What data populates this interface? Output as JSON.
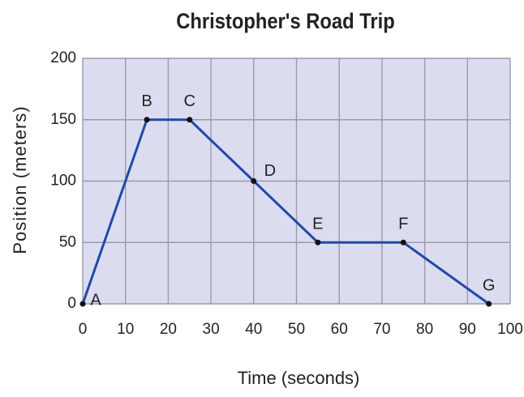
{
  "chart_data": {
    "type": "line",
    "title": "Christopher's Road Trip",
    "xlabel": "Time (seconds)",
    "ylabel": "Position (meters)",
    "x": [
      0,
      15,
      25,
      40,
      55,
      75,
      95
    ],
    "values": [
      0,
      150,
      150,
      100,
      50,
      50,
      0
    ],
    "point_labels": [
      "A",
      "B",
      "C",
      "D",
      "E",
      "F",
      "G"
    ],
    "color": "#1f4aa8",
    "xlim": [
      0,
      100
    ],
    "xticks": [
      0,
      10,
      20,
      30,
      40,
      50,
      60,
      70,
      80,
      90,
      100
    ],
    "ylim": [
      0,
      200
    ],
    "yticks": [
      0,
      50,
      100,
      150,
      200
    ],
    "grid": true
  }
}
